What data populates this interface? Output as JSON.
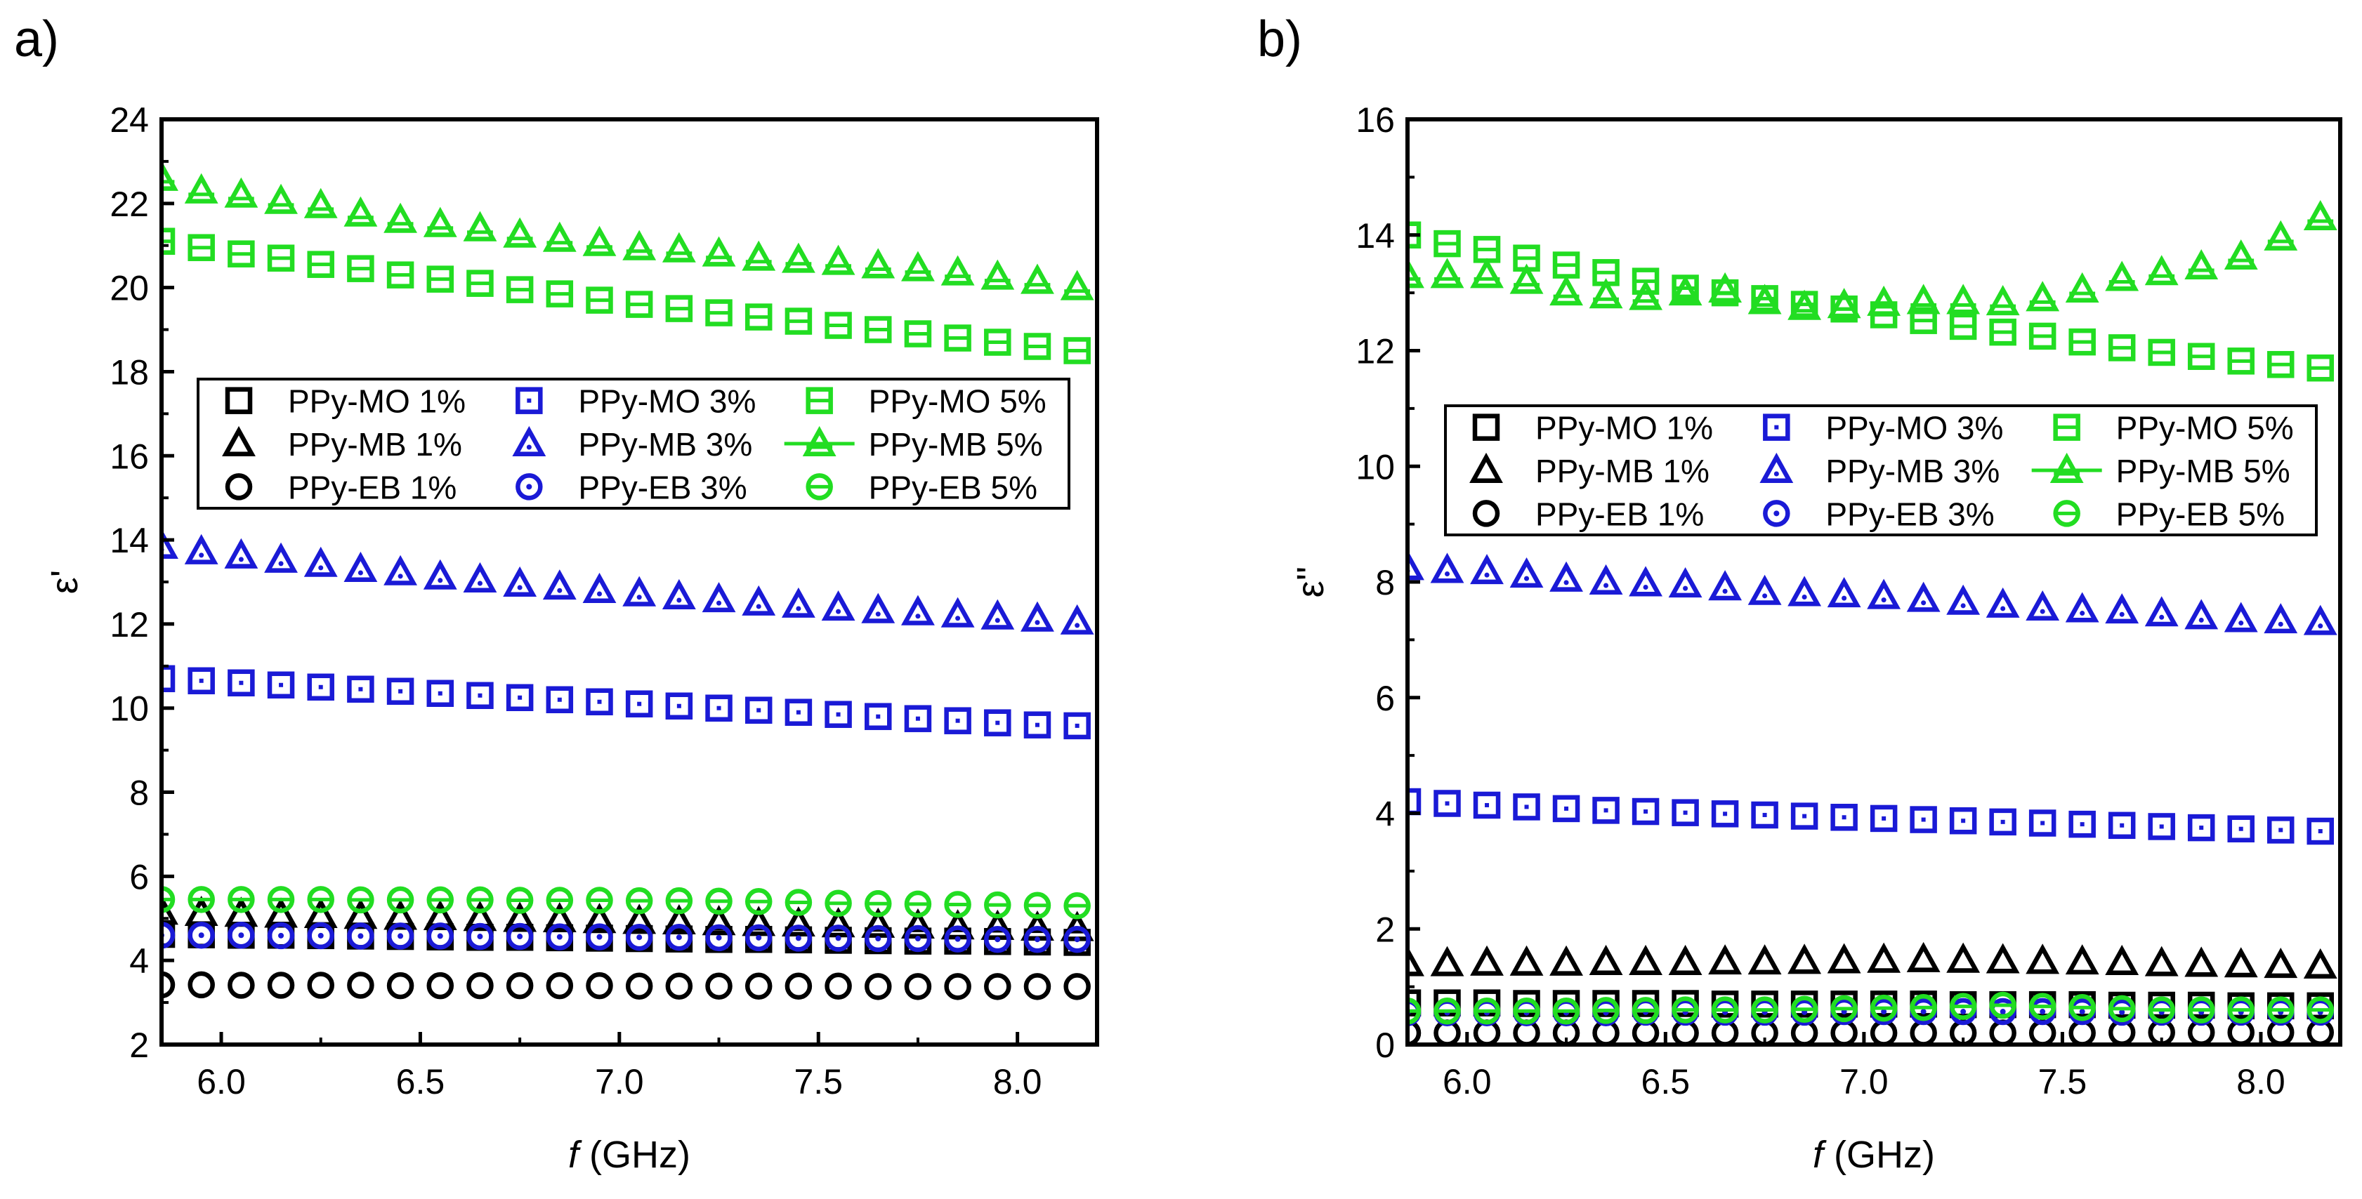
{
  "figure": {
    "panels": [
      "a)",
      "b)"
    ]
  },
  "colors": {
    "one_percent": "#000000",
    "three_percent": "#1a1ad6",
    "five_percent": "#22dd22",
    "axis": "#000000"
  },
  "chart_data": [
    {
      "panel_label": "a)",
      "type": "scatter",
      "title": "",
      "xlabel_italic": "f",
      "xlabel_rest": " (GHz)",
      "ylabel": "ε'",
      "xlim": [
        5.85,
        8.2
      ],
      "ylim": [
        2,
        24
      ],
      "xticks": [
        6.0,
        6.5,
        7.0,
        7.5,
        8.0
      ],
      "xtick_labels": [
        "6.0",
        "6.5",
        "7.0",
        "7.5",
        "8.0"
      ],
      "yticks": [
        2,
        4,
        6,
        8,
        10,
        12,
        14,
        16,
        18,
        20,
        22,
        24
      ],
      "ytick_labels": [
        "2",
        "4",
        "6",
        "8",
        "10",
        "12",
        "14",
        "16",
        "18",
        "20",
        "22",
        "24"
      ],
      "x": [
        5.85,
        5.95,
        6.05,
        6.15,
        6.25,
        6.35,
        6.45,
        6.55,
        6.65,
        6.75,
        6.85,
        6.95,
        7.05,
        7.15,
        7.25,
        7.35,
        7.45,
        7.55,
        7.65,
        7.75,
        7.85,
        7.95,
        8.05,
        8.15
      ],
      "series": [
        {
          "name": "PPy-MO 1%",
          "marker": "square",
          "color": "one_percent",
          "values": [
            4.62,
            4.61,
            4.6,
            4.6,
            4.59,
            4.58,
            4.57,
            4.56,
            4.55,
            4.55,
            4.54,
            4.53,
            4.52,
            4.51,
            4.5,
            4.5,
            4.49,
            4.48,
            4.47,
            4.46,
            4.46,
            4.45,
            4.44,
            4.43
          ]
        },
        {
          "name": "PPy-MO 3%",
          "marker": "square",
          "color": "three_percent",
          "values": [
            10.7,
            10.65,
            10.6,
            10.55,
            10.5,
            10.45,
            10.4,
            10.35,
            10.3,
            10.25,
            10.2,
            10.15,
            10.1,
            10.05,
            10.0,
            9.95,
            9.9,
            9.85,
            9.8,
            9.75,
            9.7,
            9.65,
            9.6,
            9.58
          ]
        },
        {
          "name": "PPy-MO 5%",
          "marker": "square",
          "color": "five_percent",
          "values": [
            21.1,
            20.95,
            20.8,
            20.7,
            20.55,
            20.45,
            20.3,
            20.2,
            20.1,
            19.95,
            19.85,
            19.7,
            19.6,
            19.5,
            19.4,
            19.3,
            19.2,
            19.1,
            19.0,
            18.9,
            18.8,
            18.7,
            18.6,
            18.5
          ]
        },
        {
          "name": "PPy-MB 1%",
          "marker": "triangle",
          "color": "one_percent",
          "values": [
            5.15,
            5.12,
            5.1,
            5.08,
            5.07,
            5.05,
            5.03,
            5.02,
            5.0,
            4.98,
            4.97,
            4.95,
            4.93,
            4.92,
            4.9,
            4.88,
            4.87,
            4.85,
            4.84,
            4.82,
            4.8,
            4.79,
            4.77,
            4.76
          ]
        },
        {
          "name": "PPy-MB 3%",
          "marker": "triangle",
          "color": "three_percent",
          "values": [
            13.85,
            13.72,
            13.62,
            13.52,
            13.42,
            13.3,
            13.22,
            13.12,
            13.05,
            12.95,
            12.88,
            12.8,
            12.72,
            12.65,
            12.58,
            12.5,
            12.45,
            12.38,
            12.32,
            12.27,
            12.22,
            12.17,
            12.12,
            12.05
          ]
        },
        {
          "name": "PPy-MB 5%",
          "marker": "triangle",
          "color": "five_percent",
          "values": [
            22.6,
            22.3,
            22.2,
            22.05,
            21.95,
            21.75,
            21.6,
            21.5,
            21.4,
            21.25,
            21.15,
            21.05,
            20.95,
            20.9,
            20.8,
            20.7,
            20.65,
            20.6,
            20.52,
            20.45,
            20.35,
            20.25,
            20.15,
            20.0
          ]
        },
        {
          "name": "PPy-EB 1%",
          "marker": "circle",
          "color": "one_percent",
          "values": [
            3.42,
            3.42,
            3.41,
            3.41,
            3.41,
            3.41,
            3.4,
            3.4,
            3.4,
            3.4,
            3.4,
            3.4,
            3.39,
            3.39,
            3.39,
            3.39,
            3.39,
            3.39,
            3.38,
            3.38,
            3.38,
            3.38,
            3.38,
            3.38
          ]
        },
        {
          "name": "PPy-EB 3%",
          "marker": "circle-dot",
          "color": "three_percent",
          "values": [
            4.6,
            4.6,
            4.6,
            4.59,
            4.59,
            4.58,
            4.58,
            4.58,
            4.57,
            4.57,
            4.56,
            4.56,
            4.55,
            4.55,
            4.54,
            4.54,
            4.53,
            4.53,
            4.52,
            4.52,
            4.51,
            4.5,
            4.5,
            4.5
          ]
        },
        {
          "name": "PPy-EB 5%",
          "marker": "circle-dash",
          "color": "five_percent",
          "values": [
            5.45,
            5.45,
            5.45,
            5.45,
            5.45,
            5.44,
            5.44,
            5.44,
            5.44,
            5.43,
            5.43,
            5.43,
            5.42,
            5.42,
            5.41,
            5.4,
            5.38,
            5.36,
            5.35,
            5.34,
            5.33,
            5.32,
            5.31,
            5.3
          ]
        }
      ]
    },
    {
      "panel_label": "b)",
      "type": "scatter",
      "title": "",
      "xlabel_italic": "f",
      "xlabel_rest": " (GHz)",
      "ylabel": "ε''",
      "xlim": [
        5.85,
        8.2
      ],
      "ylim": [
        0,
        16
      ],
      "xticks": [
        6.0,
        6.5,
        7.0,
        7.5,
        8.0
      ],
      "xtick_labels": [
        "6.0",
        "6.5",
        "7.0",
        "7.5",
        "8.0"
      ],
      "yticks": [
        0,
        2,
        4,
        6,
        8,
        10,
        12,
        14,
        16
      ],
      "ytick_labels": [
        "0",
        "2",
        "4",
        "6",
        "8",
        "10",
        "12",
        "14",
        "16"
      ],
      "x": [
        5.85,
        5.95,
        6.05,
        6.15,
        6.25,
        6.35,
        6.45,
        6.55,
        6.65,
        6.75,
        6.85,
        6.95,
        7.05,
        7.15,
        7.25,
        7.35,
        7.45,
        7.55,
        7.65,
        7.75,
        7.85,
        7.95,
        8.05,
        8.15
      ],
      "series": [
        {
          "name": "PPy-MO 1%",
          "marker": "square",
          "color": "one_percent",
          "values": [
            0.72,
            0.72,
            0.72,
            0.71,
            0.71,
            0.71,
            0.71,
            0.71,
            0.7,
            0.7,
            0.7,
            0.7,
            0.7,
            0.7,
            0.69,
            0.69,
            0.69,
            0.69,
            0.68,
            0.68,
            0.68,
            0.67,
            0.67,
            0.67
          ]
        },
        {
          "name": "PPy-MO 3%",
          "marker": "square",
          "color": "three_percent",
          "values": [
            4.2,
            4.17,
            4.14,
            4.11,
            4.08,
            4.05,
            4.03,
            4.01,
            3.99,
            3.97,
            3.95,
            3.93,
            3.91,
            3.89,
            3.87,
            3.85,
            3.83,
            3.81,
            3.79,
            3.77,
            3.75,
            3.73,
            3.71,
            3.69
          ]
        },
        {
          "name": "PPy-MO 5%",
          "marker": "square",
          "color": "five_percent",
          "values": [
            14.0,
            13.85,
            13.75,
            13.6,
            13.48,
            13.35,
            13.2,
            13.08,
            13.0,
            12.9,
            12.8,
            12.72,
            12.62,
            12.52,
            12.42,
            12.32,
            12.25,
            12.15,
            12.05,
            11.97,
            11.9,
            11.82,
            11.76,
            11.7
          ]
        },
        {
          "name": "PPy-MB 1%",
          "marker": "triangle",
          "color": "one_percent",
          "values": [
            1.4,
            1.4,
            1.41,
            1.41,
            1.41,
            1.42,
            1.42,
            1.42,
            1.43,
            1.43,
            1.44,
            1.45,
            1.46,
            1.47,
            1.46,
            1.45,
            1.44,
            1.43,
            1.42,
            1.4,
            1.39,
            1.38,
            1.37,
            1.36
          ]
        },
        {
          "name": "PPy-MB 3%",
          "marker": "triangle",
          "color": "three_percent",
          "values": [
            8.25,
            8.2,
            8.18,
            8.12,
            8.05,
            8.0,
            7.97,
            7.95,
            7.9,
            7.82,
            7.8,
            7.78,
            7.75,
            7.7,
            7.65,
            7.6,
            7.55,
            7.52,
            7.5,
            7.45,
            7.4,
            7.35,
            7.33,
            7.3
          ]
        },
        {
          "name": "PPy-MB 5%",
          "marker": "triangle",
          "color": "five_percent",
          "values": [
            13.3,
            13.3,
            13.3,
            13.2,
            13.0,
            12.95,
            12.92,
            13.0,
            13.05,
            12.85,
            12.75,
            12.78,
            12.82,
            12.85,
            12.85,
            12.83,
            12.9,
            13.05,
            13.25,
            13.35,
            13.45,
            13.62,
            13.95,
            14.3
          ]
        },
        {
          "name": "PPy-EB 1%",
          "marker": "circle",
          "color": "one_percent",
          "values": [
            0.2,
            0.2,
            0.2,
            0.2,
            0.2,
            0.2,
            0.2,
            0.2,
            0.2,
            0.2,
            0.2,
            0.2,
            0.2,
            0.2,
            0.2,
            0.2,
            0.2,
            0.2,
            0.21,
            0.21,
            0.21,
            0.21,
            0.21,
            0.21
          ]
        },
        {
          "name": "PPy-EB 3%",
          "marker": "circle-dot",
          "color": "three_percent",
          "values": [
            0.55,
            0.55,
            0.55,
            0.55,
            0.55,
            0.55,
            0.56,
            0.56,
            0.56,
            0.56,
            0.56,
            0.57,
            0.57,
            0.57,
            0.57,
            0.57,
            0.57,
            0.57,
            0.56,
            0.56,
            0.56,
            0.56,
            0.56,
            0.56
          ]
        },
        {
          "name": "PPy-EB 5%",
          "marker": "circle-dash",
          "color": "five_percent",
          "values": [
            0.58,
            0.58,
            0.58,
            0.58,
            0.58,
            0.59,
            0.59,
            0.6,
            0.6,
            0.6,
            0.61,
            0.62,
            0.63,
            0.64,
            0.66,
            0.68,
            0.66,
            0.64,
            0.62,
            0.6,
            0.6,
            0.6,
            0.6,
            0.6
          ]
        }
      ]
    }
  ],
  "legend": {
    "columns": [
      [
        "PPy-MO 1%",
        "PPy-MB 1%",
        "PPy-EB 1%"
      ],
      [
        "PPy-MO 3%",
        "PPy-MB 3%",
        "PPy-EB 3%"
      ],
      [
        "PPy-MO 5%",
        "PPy-MB 5%",
        "PPy-EB 5%"
      ]
    ]
  }
}
